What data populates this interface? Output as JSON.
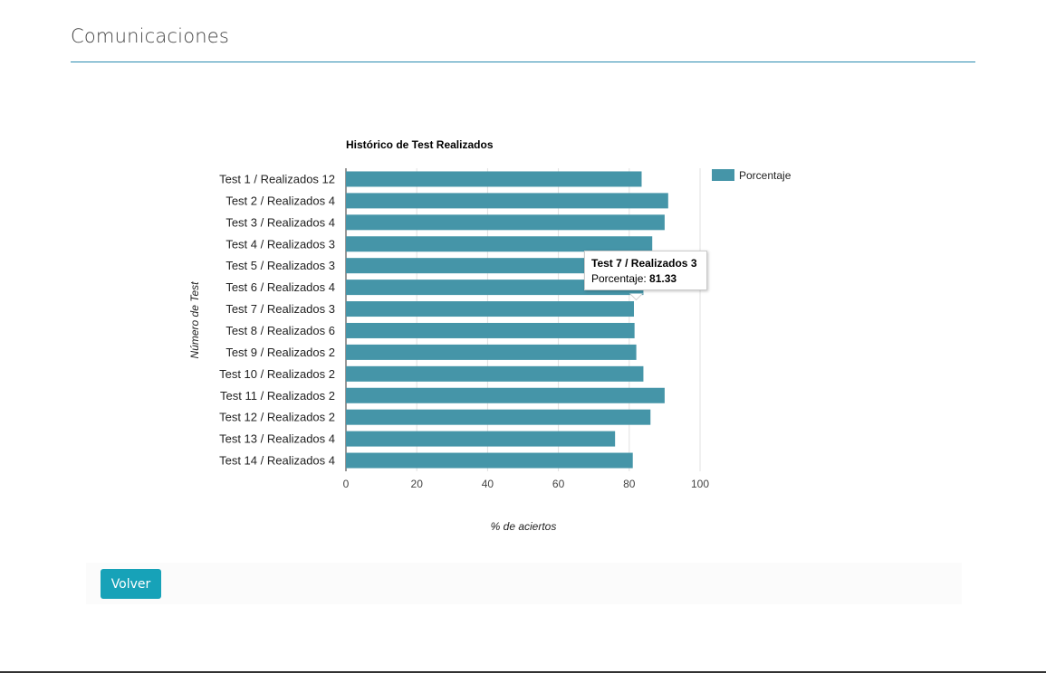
{
  "header": {
    "title": "Comunicaciones"
  },
  "chart_data": {
    "type": "bar",
    "orientation": "horizontal",
    "title": "Histórico de Test Realizados",
    "xlabel": "% de aciertos",
    "ylabel": "Número de Test",
    "xlim": [
      0,
      100
    ],
    "x_ticks": [
      0,
      20,
      40,
      60,
      80,
      100
    ],
    "grid": "vertical",
    "legend_position": "top-right",
    "categories": [
      "Test 1 / Realizados 12",
      "Test 2 / Realizados 4",
      "Test 3 / Realizados 4",
      "Test 4 / Realizados 3",
      "Test 5 / Realizados 3",
      "Test 6 / Realizados 4",
      "Test 7 / Realizados 3",
      "Test 8 / Realizados 6",
      "Test 9 / Realizados 2",
      "Test 10 / Realizados 2",
      "Test 11 / Realizados 2",
      "Test 12 / Realizados 2",
      "Test 13 / Realizados 4",
      "Test 14 / Realizados 4"
    ],
    "series": [
      {
        "name": "Porcentaje",
        "color": "#4595a8",
        "values": [
          83.5,
          91,
          90,
          86.5,
          85,
          84,
          81.33,
          81.5,
          82,
          84,
          90,
          86,
          76,
          81
        ]
      }
    ],
    "tooltip": {
      "title": "Test 7 / Realizados 3",
      "label": "Porcentaje: ",
      "value": "81.33"
    }
  },
  "actions": {
    "back_label": "Volver"
  },
  "colors": {
    "accent": "#17a2b8",
    "bar": "#4595a8",
    "rule": "#2a8bb0"
  }
}
